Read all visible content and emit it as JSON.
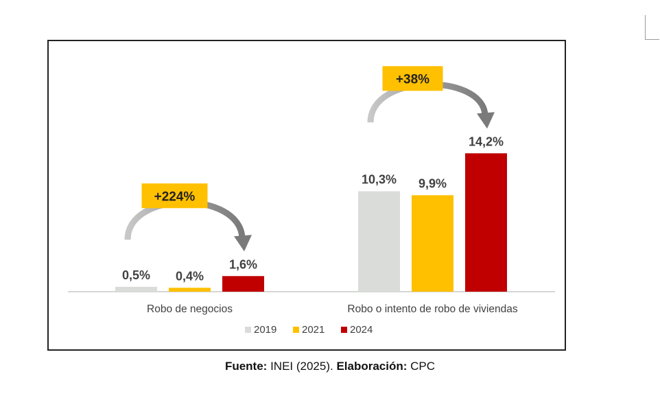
{
  "chart_data": {
    "type": "bar",
    "categories": [
      "Robo de negocios",
      "Robo o intento de robo de viviendas"
    ],
    "series": [
      {
        "name": "2019",
        "color": "#d9dcd8",
        "values": [
          0.5,
          10.3
        ],
        "labels": [
          "0,5%",
          "10,3%"
        ]
      },
      {
        "name": "2021",
        "color": "#ffc000",
        "values": [
          0.4,
          9.9
        ],
        "labels": [
          "0,4%",
          "9,9%"
        ]
      },
      {
        "name": "2024",
        "color": "#c00000",
        "values": [
          1.6,
          14.2
        ],
        "labels": [
          "1,6%",
          "14,2%"
        ]
      }
    ],
    "ylim": [
      0,
      15
    ],
    "grid": false,
    "legend": "bottom",
    "annotations": [
      {
        "category_index": 0,
        "text": "+224%",
        "color": "#ffc000"
      },
      {
        "category_index": 1,
        "text": "+38%",
        "color": "#ffc000"
      }
    ]
  },
  "source": {
    "source_label": "Fuente:",
    "source_text": " INEI (2025). ",
    "elab_label": "Elaboración:",
    "elab_text": " CPC"
  }
}
